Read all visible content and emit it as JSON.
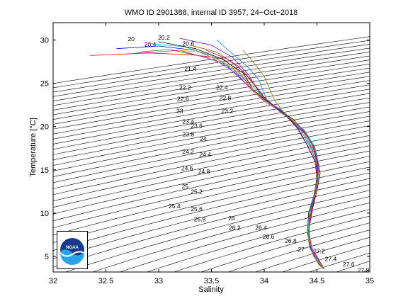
{
  "chart_data": {
    "type": "line",
    "title": "WMO ID 2901388, internal ID 3957, 24−Oct−2018",
    "xlabel": "Salinity",
    "ylabel": "Temperature [°C]",
    "xlim": [
      32,
      35
    ],
    "ylim": [
      3.2,
      32
    ],
    "xticks": [
      "32",
      "32.5",
      "33",
      "33.5",
      "34",
      "34.5",
      "35"
    ],
    "yticks": [
      "5",
      "10",
      "15",
      "20",
      "25",
      "30"
    ],
    "grid": false,
    "density_contour_labels": [
      {
        "text": "20",
        "s": 32.74,
        "t": 30.1
      },
      {
        "text": "20.2",
        "s": 33.05,
        "t": 30.3
      },
      {
        "text": "20.4",
        "s": 32.92,
        "t": 29.5
      },
      {
        "text": "20.6",
        "s": 33.28,
        "t": 29.6
      },
      {
        "text": "21.4",
        "s": 33.3,
        "t": 26.7
      },
      {
        "text": "22.2",
        "s": 33.25,
        "t": 24.5
      },
      {
        "text": "22.4",
        "s": 33.6,
        "t": 24.5
      },
      {
        "text": "22.6",
        "s": 33.23,
        "t": 23.2
      },
      {
        "text": "22.8",
        "s": 33.63,
        "t": 23.3
      },
      {
        "text": "23",
        "s": 33.2,
        "t": 21.8
      },
      {
        "text": "23.2",
        "s": 33.65,
        "t": 21.8
      },
      {
        "text": "23.4",
        "s": 33.28,
        "t": 20.6
      },
      {
        "text": "23.6",
        "s": 33.36,
        "t": 20.1
      },
      {
        "text": "23.8",
        "s": 33.28,
        "t": 19.1
      },
      {
        "text": "24",
        "s": 33.42,
        "t": 18.6
      },
      {
        "text": "24.2",
        "s": 33.28,
        "t": 17.1
      },
      {
        "text": "24.4",
        "s": 33.44,
        "t": 16.8
      },
      {
        "text": "24.6",
        "s": 33.27,
        "t": 15.2
      },
      {
        "text": "24.8",
        "s": 33.43,
        "t": 14.8
      },
      {
        "text": "25",
        "s": 33.25,
        "t": 13.1
      },
      {
        "text": "25.2",
        "s": 33.36,
        "t": 12.5
      },
      {
        "text": "25.4",
        "s": 33.15,
        "t": 10.8
      },
      {
        "text": "25.6",
        "s": 33.36,
        "t": 10.5
      },
      {
        "text": "25.8",
        "s": 33.39,
        "t": 9.3
      },
      {
        "text": "26",
        "s": 33.69,
        "t": 9.4
      },
      {
        "text": "26.2",
        "s": 33.72,
        "t": 8.3
      },
      {
        "text": "26.4",
        "s": 33.97,
        "t": 8.3
      },
      {
        "text": "26.6",
        "s": 34.04,
        "t": 7.3
      },
      {
        "text": "26.8",
        "s": 34.25,
        "t": 6.8
      },
      {
        "text": "27",
        "s": 34.35,
        "t": 5.8
      },
      {
        "text": "27.2",
        "s": 34.52,
        "t": 5.6
      },
      {
        "text": "27.4",
        "s": 34.63,
        "t": 4.7
      },
      {
        "text": "27.6",
        "s": 34.8,
        "t": 4.1
      },
      {
        "text": "27.8",
        "s": 34.94,
        "t": 3.4
      }
    ],
    "series": [
      {
        "color": "#ff0000",
        "s": [
          32.35,
          32.9,
          33.3,
          33.6,
          33.75,
          33.9,
          34.15,
          34.3,
          34.4,
          34.48,
          34.5,
          34.48,
          34.43,
          34.42,
          34.45,
          34.5,
          34.54
        ],
        "t": [
          28.2,
          28.5,
          28.3,
          27.9,
          26.5,
          24.0,
          22.0,
          20.0,
          18.0,
          16.0,
          14.0,
          12.0,
          10.0,
          8.0,
          6.0,
          5.0,
          4.1
        ]
      },
      {
        "color": "#0000ff",
        "s": [
          32.6,
          33.0,
          33.35,
          33.6,
          33.78,
          33.95,
          34.18,
          34.32,
          34.42,
          34.49,
          34.5,
          34.47,
          34.42,
          34.41,
          34.44,
          34.5,
          34.55
        ],
        "t": [
          29.0,
          29.3,
          28.8,
          27.5,
          25.5,
          23.5,
          21.7,
          19.8,
          17.6,
          15.8,
          14.0,
          12.0,
          10.0,
          8.0,
          6.0,
          4.8,
          4.0
        ]
      },
      {
        "color": "#00a000",
        "s": [
          32.8,
          33.1,
          33.45,
          33.7,
          33.82,
          33.98,
          34.2,
          34.35,
          34.45,
          34.5,
          34.5,
          34.46,
          34.42,
          34.41,
          34.45,
          34.5,
          34.56
        ],
        "t": [
          28.6,
          28.9,
          28.0,
          26.8,
          25.0,
          23.2,
          21.5,
          19.5,
          17.3,
          15.5,
          13.5,
          11.5,
          9.5,
          7.5,
          5.8,
          4.6,
          3.9
        ]
      },
      {
        "color": "#ff00ff",
        "s": [
          32.7,
          33.2,
          33.55,
          33.75,
          33.86,
          34.0,
          34.22,
          34.38,
          34.47,
          34.52,
          34.5,
          34.47,
          34.43,
          34.42,
          34.46,
          34.52,
          34.55
        ],
        "t": [
          28.4,
          28.8,
          27.6,
          26.0,
          24.5,
          22.9,
          21.3,
          19.2,
          17.0,
          15.2,
          13.2,
          11.2,
          9.2,
          7.2,
          5.6,
          4.5,
          3.9
        ]
      },
      {
        "color": "#00c8c8",
        "s": [
          32.9,
          33.25,
          33.5,
          33.72,
          33.88,
          34.05,
          34.25,
          34.4,
          34.48,
          34.52,
          34.49,
          34.46,
          34.43,
          34.42,
          34.46,
          34.51,
          34.55
        ],
        "t": [
          29.6,
          29.2,
          28.2,
          26.4,
          24.8,
          22.6,
          21.0,
          19.0,
          16.8,
          15.0,
          13.0,
          11.0,
          9.0,
          7.0,
          5.5,
          4.4,
          3.9
        ]
      },
      {
        "color": "#000000",
        "s": [
          33.0,
          33.35,
          33.6,
          33.8,
          33.9,
          34.08,
          34.28,
          34.42,
          34.5,
          34.53,
          34.5,
          34.46,
          34.43,
          34.42,
          34.46,
          34.51,
          34.55
        ],
        "t": [
          29.8,
          29.0,
          27.8,
          26.2,
          24.2,
          22.4,
          20.8,
          18.8,
          16.5,
          14.6,
          12.6,
          10.6,
          8.6,
          6.8,
          5.4,
          4.3,
          3.8
        ]
      },
      {
        "color": "#ff9900",
        "s": [
          33.1,
          33.4,
          33.65,
          33.82,
          33.92,
          34.1,
          34.3,
          34.43,
          34.5,
          34.52,
          34.49,
          34.45,
          34.42,
          34.42,
          34.46,
          34.52,
          34.56
        ],
        "t": [
          28.9,
          28.6,
          27.2,
          25.6,
          23.8,
          22.2,
          20.5,
          18.5,
          16.2,
          14.3,
          12.3,
          10.3,
          8.3,
          6.6,
          5.3,
          4.2,
          3.8
        ]
      },
      {
        "color": "#8000ff",
        "s": [
          33.2,
          33.5,
          33.7,
          33.85,
          33.95,
          34.12,
          34.32,
          34.45,
          34.5,
          34.51,
          34.48,
          34.45,
          34.42,
          34.43,
          34.47,
          34.52,
          34.56
        ],
        "t": [
          30.2,
          29.4,
          28.0,
          26.0,
          24.0,
          22.0,
          20.2,
          18.2,
          16.0,
          14.0,
          12.0,
          10.0,
          8.0,
          6.4,
          5.2,
          4.1,
          3.7
        ]
      },
      {
        "color": "#804000",
        "s": [
          33.3,
          33.55,
          33.75,
          33.88,
          33.98,
          34.14,
          34.34,
          34.46,
          34.51,
          34.5,
          34.47,
          34.44,
          34.42,
          34.43,
          34.47,
          34.52,
          34.56
        ],
        "t": [
          29.4,
          28.6,
          27.0,
          25.2,
          23.6,
          21.8,
          20.0,
          18.0,
          15.8,
          13.8,
          11.8,
          9.8,
          7.8,
          6.3,
          5.1,
          4.0,
          3.7
        ]
      },
      {
        "color": "#c00060",
        "s": [
          33.45,
          33.65,
          33.8,
          33.9,
          34.0,
          34.16,
          34.36,
          34.47,
          34.51,
          34.5,
          34.47,
          34.44,
          34.42,
          34.43,
          34.47,
          34.53,
          34.56
        ],
        "t": [
          28.8,
          27.8,
          26.4,
          25.0,
          23.4,
          21.6,
          19.8,
          17.8,
          15.6,
          13.6,
          11.6,
          9.6,
          7.6,
          6.2,
          5.0,
          4.0,
          3.6
        ]
      },
      {
        "color": "#0080ff",
        "s": [
          33.55,
          33.7,
          33.85,
          33.95,
          34.02,
          34.18,
          34.38,
          34.48,
          34.52,
          34.5,
          34.46,
          34.43,
          34.42,
          34.43,
          34.48,
          34.53,
          34.57
        ],
        "t": [
          30.0,
          28.4,
          26.8,
          25.4,
          23.2,
          21.5,
          19.6,
          17.6,
          15.4,
          13.4,
          11.4,
          9.4,
          7.5,
          6.1,
          5.0,
          3.9,
          3.6
        ]
      },
      {
        "color": "#808000",
        "s": [
          33.8,
          33.9,
          34.0,
          34.05,
          34.1,
          34.2,
          34.38,
          34.47,
          34.5,
          34.49,
          34.46,
          34.43,
          34.42,
          34.43,
          34.48,
          34.53,
          34.57
        ],
        "t": [
          28.8,
          27.4,
          25.8,
          24.4,
          23.0,
          21.4,
          19.5,
          17.5,
          15.3,
          13.3,
          11.3,
          9.3,
          7.4,
          6.0,
          4.9,
          3.9,
          3.5
        ]
      }
    ]
  },
  "logo": {
    "text": "NOAA"
  }
}
